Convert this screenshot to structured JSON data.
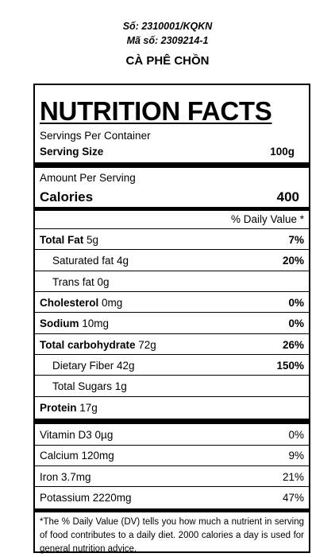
{
  "header": {
    "doc_number": "Số: 2310001/KQKN",
    "code_number": "Mã số: 2309214-1",
    "product_name": "CÀ PHÊ CHỒN"
  },
  "label": {
    "title": "NUTRITION FACTS",
    "servings_per_container": "Servings Per Container",
    "serving_size_label": "Serving Size",
    "serving_size_value": "100g",
    "amount_per_serving": "Amount Per Serving",
    "calories_label": "Calories",
    "calories_value": "400",
    "daily_value_header": "% Daily Value *",
    "nutrients": [
      {
        "name": "Total Fat",
        "amount": " 5g",
        "dv": "7%"
      },
      {
        "name": "Saturated fat 4g",
        "amount": "",
        "dv": "20%"
      },
      {
        "name": "Trans fat 0g",
        "amount": "",
        "dv": ""
      },
      {
        "name": "Cholesterol",
        "amount": " 0mg",
        "dv": "0%"
      },
      {
        "name": "Sodium",
        "amount": " 10mg",
        "dv": "0%"
      },
      {
        "name": "Total carbohydrate",
        "amount": " 72g",
        "dv": "26%"
      },
      {
        "name": "Dietary Fiber 42g",
        "amount": "",
        "dv": "150%"
      },
      {
        "name": "Total Sugars 1g",
        "amount": "",
        "dv": ""
      },
      {
        "name": "Protein",
        "amount": " 17g",
        "dv": ""
      }
    ],
    "vitamins": [
      {
        "name": "Vitamin D3  0µg",
        "dv": "0%"
      },
      {
        "name": "Calcium 120mg",
        "dv": "9%"
      },
      {
        "name": "Iron 3.7mg",
        "dv": "21%"
      },
      {
        "name": "Potassium 2220mg",
        "dv": "47%"
      }
    ],
    "footnote": "*The % Daily Value (DV) tells you how much a nutrient in serving of food contributes to a daily diet. 2000 calories a day is used for general nutrition advice."
  }
}
